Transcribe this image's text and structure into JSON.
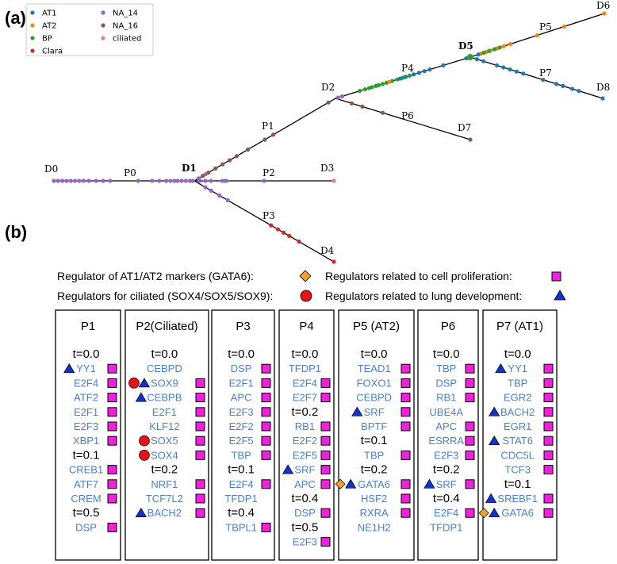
{
  "panels": {
    "a": "(a)",
    "b": "(b)"
  },
  "tree": {
    "legend": [
      {
        "name": "AT1",
        "color": "#1f77b4"
      },
      {
        "name": "AT2",
        "color": "#ff7f0e"
      },
      {
        "name": "BP",
        "color": "#2ca02c"
      },
      {
        "name": "Clara",
        "color": "#d62728"
      },
      {
        "name": "NA_14",
        "color": "#9467bd"
      },
      {
        "name": "NA_16",
        "color": "#8c564b"
      },
      {
        "name": "ciliated",
        "color": "#e377c2"
      }
    ],
    "nodes": [
      {
        "id": "D0",
        "label": "D0",
        "bold": false
      },
      {
        "id": "D1",
        "label": "D1",
        "bold": true
      },
      {
        "id": "D2",
        "label": "D2",
        "bold": false
      },
      {
        "id": "D3",
        "label": "D3",
        "bold": false
      },
      {
        "id": "D4",
        "label": "D4",
        "bold": false
      },
      {
        "id": "D5",
        "label": "D5",
        "bold": true
      },
      {
        "id": "D6",
        "label": "D6",
        "bold": false
      },
      {
        "id": "D7",
        "label": "D7",
        "bold": false
      },
      {
        "id": "D8",
        "label": "D8",
        "bold": false
      }
    ],
    "paths": [
      {
        "label": "P0",
        "from": "D0",
        "to": "D1"
      },
      {
        "label": "P1",
        "from": "D1",
        "to": "D2"
      },
      {
        "label": "P2",
        "from": "D1",
        "to": "D3"
      },
      {
        "label": "P3",
        "from": "D1",
        "to": "D4"
      },
      {
        "label": "P4",
        "from": "D2",
        "to": "D5"
      },
      {
        "label": "P5",
        "from": "D5",
        "to": "D6"
      },
      {
        "label": "P6",
        "from": "D2",
        "to": "D7"
      },
      {
        "label": "P7",
        "from": "D5",
        "to": "D8"
      }
    ]
  },
  "key": {
    "gata6": "Regulator of AT1/AT2 markers (GATA6):",
    "ciliated": "Regulators for ciliated (SOX4/SOX5/SOX9):",
    "proliferation": "Regulators related to cell proliferation:",
    "lung_prefix": "Regulators related to",
    "lung_suffix": "lung development:",
    "colors": {
      "diamond": "#f0a030",
      "circle": "#e8101a",
      "square": "#ee22dd",
      "triangle": "#1133cc"
    }
  },
  "columns": [
    {
      "title": "P1",
      "rows": [
        {
          "t": "t=0.0"
        },
        {
          "g": "YY1",
          "tri": true,
          "sq": true
        },
        {
          "g": "E2F4",
          "sq": true
        },
        {
          "g": "ATF2",
          "sq": true
        },
        {
          "g": "E2F1",
          "sq": true
        },
        {
          "g": "E2F3",
          "sq": true
        },
        {
          "g": "XBP1",
          "sq": true
        },
        {
          "t": "t=0.1"
        },
        {
          "g": "CREB1",
          "sq": true
        },
        {
          "g": "ATF7",
          "sq": true
        },
        {
          "g": "CREM",
          "sq": true
        },
        {
          "t": "t=0.5"
        },
        {
          "g": "DSP",
          "sq": true
        }
      ]
    },
    {
      "title": "P2(Ciliated)",
      "rows": [
        {
          "t": "t=0.0"
        },
        {
          "g": "CEBPD"
        },
        {
          "g": "SOX9",
          "circ": true,
          "tri": true,
          "sq": true
        },
        {
          "g": "CEBPB",
          "tri": true,
          "sq": true
        },
        {
          "g": "E2F1",
          "sq": true
        },
        {
          "g": "KLF12",
          "sq": true
        },
        {
          "g": "SOX5",
          "circ": true,
          "sq": true
        },
        {
          "g": "SOX4",
          "circ": true,
          "sq": true
        },
        {
          "t": "t=0.2"
        },
        {
          "g": "NRF1",
          "sq": true
        },
        {
          "g": "TCF7L2",
          "sq": true
        },
        {
          "g": "BACH2",
          "tri": true,
          "sq": true
        }
      ]
    },
    {
      "title": "P3",
      "rows": [
        {
          "t": "t=0.0"
        },
        {
          "g": "DSP",
          "sq": true
        },
        {
          "g": "E2F1",
          "sq": true
        },
        {
          "g": "APC",
          "sq": true
        },
        {
          "g": "E2F3",
          "sq": true
        },
        {
          "g": "E2F2",
          "sq": true
        },
        {
          "g": "E2F5",
          "sq": true
        },
        {
          "g": "TBP",
          "sq": true
        },
        {
          "t": "t=0.1"
        },
        {
          "g": "E2F4",
          "sq": true
        },
        {
          "g": "TFDP1"
        },
        {
          "t": "t=0.4"
        },
        {
          "g": "TBPL1",
          "sq": true
        }
      ]
    },
    {
      "title": "P4",
      "rows": [
        {
          "t": "t=0.0"
        },
        {
          "g": "TFDP1"
        },
        {
          "g": "E2F4",
          "sq": true
        },
        {
          "g": "E2F7",
          "sq": true
        },
        {
          "t": "t=0.2"
        },
        {
          "g": "RB1",
          "sq": true
        },
        {
          "g": "E2F2",
          "sq": true
        },
        {
          "g": "E2F5",
          "sq": true
        },
        {
          "g": "SRF",
          "tri": true,
          "sq": true
        },
        {
          "g": "APC",
          "sq": true
        },
        {
          "t": "t=0.4"
        },
        {
          "g": "DSP",
          "sq": true
        },
        {
          "t": "t=0.5"
        },
        {
          "g": "E2F3",
          "sq": true
        }
      ]
    },
    {
      "title": "P5 (AT2)",
      "rows": [
        {
          "t": "t=0.0"
        },
        {
          "g": "TEAD1",
          "sq": true
        },
        {
          "g": "FOXO1",
          "sq": true
        },
        {
          "g": "CEBPD",
          "sq": true
        },
        {
          "g": "SRF",
          "tri": true,
          "sq": true
        },
        {
          "g": "BPTF",
          "sq": true
        },
        {
          "t": "t=0.1"
        },
        {
          "g": "TBP",
          "sq": true
        },
        {
          "t": "t=0.2"
        },
        {
          "g": "GATA6",
          "dia": true,
          "tri": true,
          "sq": true
        },
        {
          "g": "HSF2",
          "sq": true
        },
        {
          "g": "RXRA",
          "sq": true
        },
        {
          "g": "NE1H2"
        }
      ]
    },
    {
      "title": "P6",
      "rows": [
        {
          "t": "t=0.0"
        },
        {
          "g": "TBP",
          "sq": true
        },
        {
          "g": "DSP",
          "sq": true
        },
        {
          "g": "RB1",
          "sq": true
        },
        {
          "g": "UBE4A"
        },
        {
          "g": "APC",
          "sq": true
        },
        {
          "g": "ESRRA",
          "sq": true
        },
        {
          "g": "E2F3",
          "sq": true
        },
        {
          "t": "t=0.2"
        },
        {
          "g": "SRF",
          "tri": true,
          "sq": true
        },
        {
          "t": "t=0.4"
        },
        {
          "g": "E2F4",
          "sq": true
        },
        {
          "g": "TFDP1"
        }
      ]
    },
    {
      "title": "P7 (AT1)",
      "rows": [
        {
          "t": "t=0.0"
        },
        {
          "g": "YY1",
          "tri": true,
          "sq": true
        },
        {
          "g": "TBP",
          "sq": true
        },
        {
          "g": "EGR2",
          "sq": true
        },
        {
          "g": "BACH2",
          "tri": true,
          "sq": true
        },
        {
          "g": "EGR1",
          "sq": true
        },
        {
          "g": "STAT6",
          "tri": true,
          "sq": true
        },
        {
          "g": "CDC5L",
          "sq": true
        },
        {
          "g": "TCF3",
          "sq": true
        },
        {
          "t": "t=0.1"
        },
        {
          "g": "SREBF1",
          "tri": true,
          "sq": true
        },
        {
          "g": "GATA6",
          "dia": true,
          "tri": true,
          "sq": true
        }
      ]
    }
  ]
}
